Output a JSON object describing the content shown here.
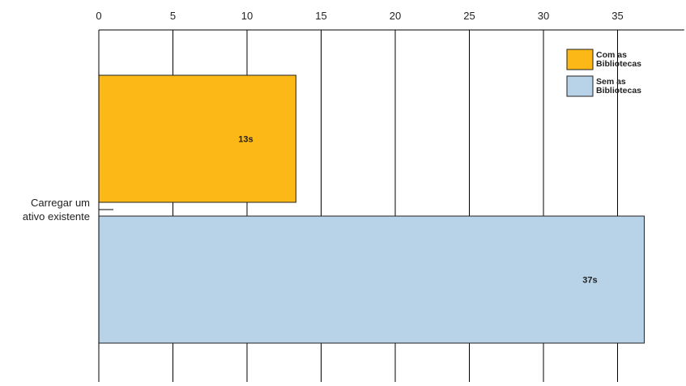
{
  "chart_data": {
    "type": "bar",
    "orientation": "horizontal",
    "categories": [
      "Carregar um ativo existente"
    ],
    "category_label_lines": [
      "Carregar um",
      "ativo existente"
    ],
    "series": [
      {
        "name": "Com as Bibliotecas",
        "legend_lines": [
          "Com as",
          "Bibliotecas"
        ],
        "values": [
          13.3
        ],
        "data_labels": [
          "13s"
        ],
        "color": "#fbb816"
      },
      {
        "name": "Sem as Bibliotecas",
        "legend_lines": [
          "Sem as",
          "Bibliotecas"
        ],
        "values": [
          36.8
        ],
        "data_labels": [
          "37s"
        ],
        "color": "#b8d2e8"
      }
    ],
    "xlim": [
      0,
      39.5
    ],
    "x_ticks": [
      0,
      5,
      10,
      15,
      20,
      25,
      30,
      35
    ],
    "x_tick_labels": [
      "0",
      "5",
      "10",
      "15",
      "20",
      "25",
      "30",
      "35"
    ],
    "x_axis_position": "top",
    "grid": true,
    "legend_position": "top-right",
    "title": "",
    "xlabel": "",
    "ylabel": ""
  }
}
